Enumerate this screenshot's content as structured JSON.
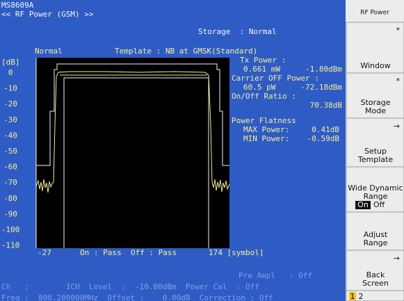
{
  "header": {
    "model": "MS8609A",
    "screen": "<< RF Power (GSM) >>",
    "storage": "Storage  : Normal"
  },
  "graph": {
    "unit": "[dB]",
    "mode": "Normal",
    "template": "Template : NB at GMSK(Standard)",
    "y_labels": [
      "0",
      "-10",
      "-20",
      "-30",
      "-40",
      "-50",
      "-60",
      "-70",
      "-80",
      "-90",
      "-100",
      "-110"
    ],
    "x_start": "-27",
    "judgement": "On : Pass  Off : Pass",
    "x_end": "174 [symbol]"
  },
  "results": {
    "tx_power_label": "Tx Power :",
    "tx_power_mw": "0.661 mW",
    "tx_power_dbm": "-1.80dBm",
    "carrier_off_label": "Carrier OFF Power :",
    "carrier_off_pw": "60.5 pW",
    "carrier_off_dbm": "-72.18dBm",
    "ratio_label": "On/Off Ratio :",
    "ratio_value": "70.38dB",
    "flatness_label": "Power Flatness",
    "max_label": "MAX Power:",
    "max_value": "0.41dB",
    "min_label": "MIN Power:",
    "min_value": "-0.59dB"
  },
  "status": {
    "pre_ampl": "Pre Ampl   : Off",
    "row1": "Ch   :        1CH  Level  :  -10.00dBm  Power Cal  : Off",
    "row2": "Freq :  890.200000MHz  Offset :    0.00dB  Correction : Off"
  },
  "softkeys": {
    "title": "RF Power",
    "keys": [
      {
        "mark": "*",
        "lines": [
          "Window"
        ]
      },
      {
        "mark": "*",
        "lines": [
          "Storage",
          "Mode"
        ]
      },
      {
        "mark": "→",
        "lines": [
          "Setup",
          "Template"
        ]
      },
      {
        "lines": [
          "Wide Dynamic",
          "Range"
        ],
        "on": "On",
        "off": "Off"
      },
      {
        "lines": [
          "Adjust",
          "Range"
        ]
      },
      {
        "mark": "→",
        "lines": [
          "Back",
          "Screen"
        ]
      }
    ],
    "pages": [
      "1",
      "2"
    ]
  }
}
